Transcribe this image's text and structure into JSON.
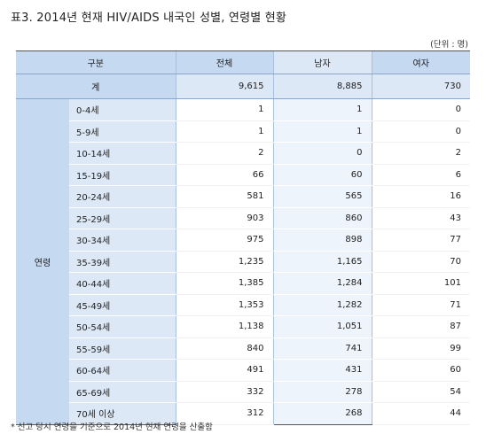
{
  "title": "표3. 2014년 현재 HIV/AIDS 내국인 성별, 연령별 현황",
  "unit": "(단위 : 명)",
  "headers": {
    "category": "구분",
    "total": "전체",
    "male": "남자",
    "female": "여자"
  },
  "total_row": {
    "label": "계",
    "total": "9,615",
    "male": "8,885",
    "female": "730"
  },
  "age_group_label": "연령",
  "rows": [
    {
      "age": "0-4세",
      "total": "1",
      "male": "1",
      "female": "0"
    },
    {
      "age": "5-9세",
      "total": "1",
      "male": "1",
      "female": "0"
    },
    {
      "age": "10-14세",
      "total": "2",
      "male": "0",
      "female": "2"
    },
    {
      "age": "15-19세",
      "total": "66",
      "male": "60",
      "female": "6"
    },
    {
      "age": "20-24세",
      "total": "581",
      "male": "565",
      "female": "16"
    },
    {
      "age": "25-29세",
      "total": "903",
      "male": "860",
      "female": "43"
    },
    {
      "age": "30-34세",
      "total": "975",
      "male": "898",
      "female": "77"
    },
    {
      "age": "35-39세",
      "total": "1,235",
      "male": "1,165",
      "female": "70"
    },
    {
      "age": "40-44세",
      "total": "1,385",
      "male": "1,284",
      "female": "101"
    },
    {
      "age": "45-49세",
      "total": "1,353",
      "male": "1,282",
      "female": "71"
    },
    {
      "age": "50-54세",
      "total": "1,138",
      "male": "1,051",
      "female": "87"
    },
    {
      "age": "55-59세",
      "total": "840",
      "male": "741",
      "female": "99"
    },
    {
      "age": "60-64세",
      "total": "491",
      "male": "431",
      "female": "60"
    },
    {
      "age": "65-69세",
      "total": "332",
      "male": "278",
      "female": "54"
    },
    {
      "age": "70세 이상",
      "total": "312",
      "male": "268",
      "female": "44"
    }
  ],
  "note": "* 신고 당시 연령을 기준으로 2014년 현재 연령을 산출함"
}
